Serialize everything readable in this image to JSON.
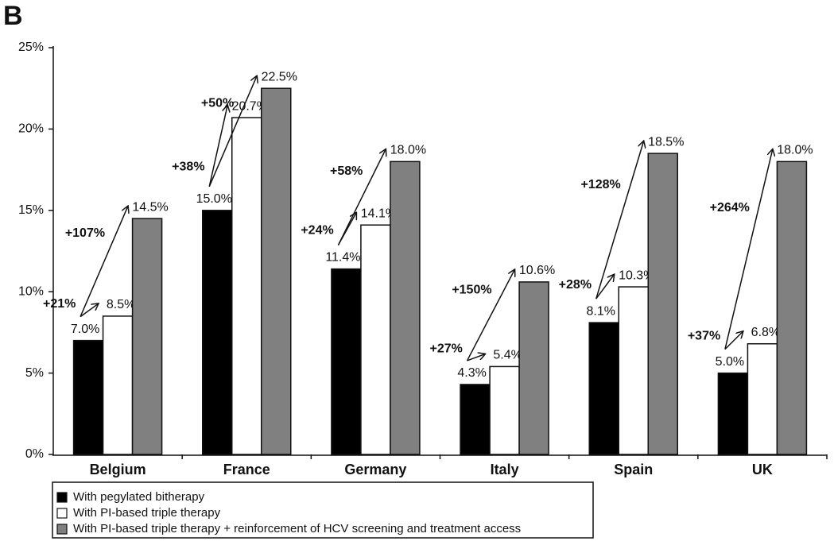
{
  "chart_data": {
    "type": "bar",
    "title": "B",
    "categories": [
      "Belgium",
      "France",
      "Germany",
      "Italy",
      "Spain",
      "UK"
    ],
    "series": [
      {
        "name": "With pegylated bitherapy",
        "color": "#000000",
        "values": [
          7.0,
          15.0,
          11.4,
          4.3,
          8.1,
          5.0
        ],
        "value_labels": [
          "7.0%",
          "15.0%",
          "11.4%",
          "4.3%",
          "8.1%",
          "5.0%"
        ]
      },
      {
        "name": "With PI-based triple therapy",
        "color": "#ffffff",
        "values": [
          8.5,
          20.7,
          14.1,
          5.4,
          10.3,
          6.8
        ],
        "value_labels": [
          "8.5%",
          "20.7%",
          "14.1%",
          "5.4%",
          "10.3%",
          "6.8%"
        ]
      },
      {
        "name": "With PI-based triple therapy + reinforcement of HCV screening and treatment access",
        "color": "#808080",
        "values": [
          14.5,
          22.5,
          18.0,
          10.6,
          18.5,
          18.0
        ],
        "value_labels": [
          "14.5%",
          "22.5%",
          "18.0%",
          "10.6%",
          "18.5%",
          "18.0%"
        ]
      }
    ],
    "increase_labels": [
      [
        "+21%",
        "+107%"
      ],
      [
        "+38%",
        "+50%"
      ],
      [
        "+24%",
        "+58%"
      ],
      [
        "+27%",
        "+150%"
      ],
      [
        "+28%",
        "+128%"
      ],
      [
        "+37%",
        "+264%"
      ]
    ],
    "ylim": [
      0,
      25
    ],
    "yticks": [
      {
        "value": 0,
        "label": "0%"
      },
      {
        "value": 5,
        "label": "5%"
      },
      {
        "value": 10,
        "label": "10%"
      },
      {
        "value": 15,
        "label": "15%"
      },
      {
        "value": 20,
        "label": "20%"
      },
      {
        "value": 25,
        "label": "25%"
      }
    ],
    "grid": false,
    "legend": "bottom-left"
  }
}
